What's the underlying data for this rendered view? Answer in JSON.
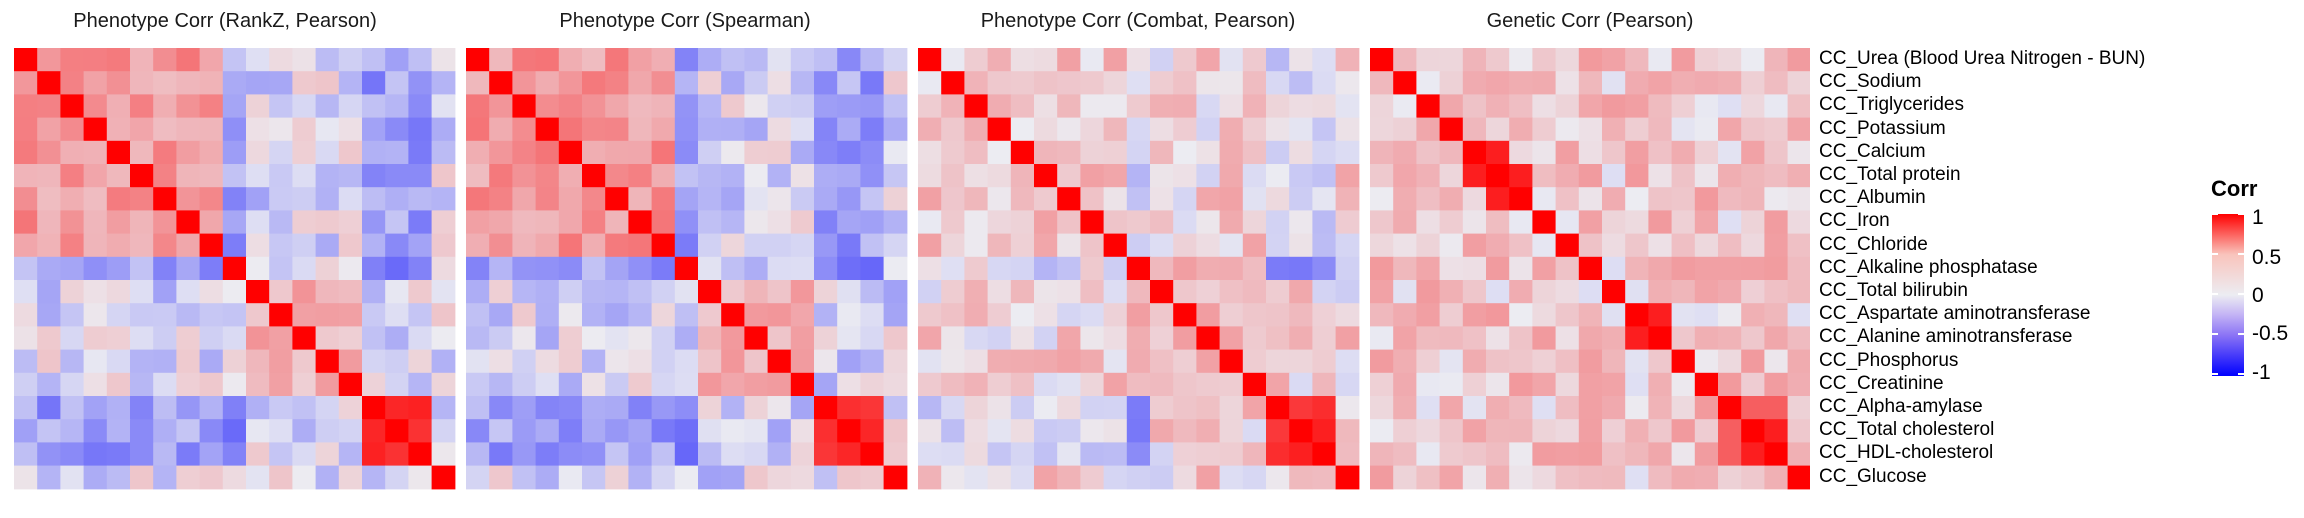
{
  "chart_data": {
    "type": "heatmap",
    "panels": [
      {
        "title": "Phenotype Corr (RankZ, Pearson)"
      },
      {
        "title": "Phenotype Corr (Spearman)"
      },
      {
        "title": "Phenotype Corr (Combat, Pearson)"
      },
      {
        "title": "Genetic Corr  (Pearson)"
      }
    ],
    "variables": [
      "CC_Urea (Blood Urea Nitrogen - BUN)",
      "CC_Sodium",
      "CC_Triglycerides",
      "CC_Potassium",
      "CC_Calcium",
      "CC_Total protein",
      "CC_Albumin",
      "CC_Iron",
      "CC_Chloride",
      "CC_Alkaline phosphatase",
      "CC_Total bilirubin",
      "CC_Aspartate aminotransferase",
      "CC_Alanine aminotransferase",
      "CC_Phosphorus",
      "CC_Creatinine",
      "CC_Alpha-amylase",
      "CC_Total cholesterol",
      "CC_HDL-cholesterol",
      "CC_Glucose"
    ],
    "legend": {
      "title": "Corr",
      "ticks": [
        "1",
        "0.5",
        "0",
        "-0.5",
        "-1"
      ],
      "placement": "right",
      "colors": {
        "high": "#ff0000",
        "mid": "#ececf2",
        "low": "#0000ff"
      }
    },
    "value_range": [
      -1,
      1
    ]
  }
}
